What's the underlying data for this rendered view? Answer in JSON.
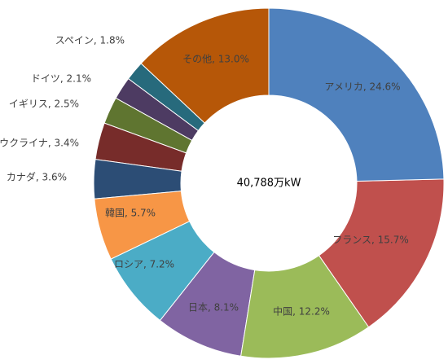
{
  "chart_data": {
    "type": "donut",
    "center_label": "40,788万kW",
    "values": [
      24.6,
      15.7,
      12.2,
      8.1,
      7.2,
      5.7,
      3.6,
      3.4,
      2.5,
      2.1,
      1.8,
      13.0
    ],
    "value_labels": [
      "アメリカ, 24.6%",
      "フランス, 15.7%",
      "中国, 12.2%",
      "日本, 8.1%",
      "ロシア, 7.2%",
      "韓国, 5.7%",
      "カナダ, 3.6%",
      "ウクライナ, 3.4%",
      "イギリス, 2.5%",
      "ドイツ, 2.1%",
      "スペイン, 1.8%",
      "その他, 13.0%"
    ],
    "colors": [
      "#4f81bd",
      "#c0504d",
      "#9bbb59",
      "#8064a2",
      "#4bacc6",
      "#f79646",
      "#2c4d75",
      "#772c2a",
      "#5f7530",
      "#4d3b62",
      "#276a7c",
      "#b65708"
    ]
  }
}
